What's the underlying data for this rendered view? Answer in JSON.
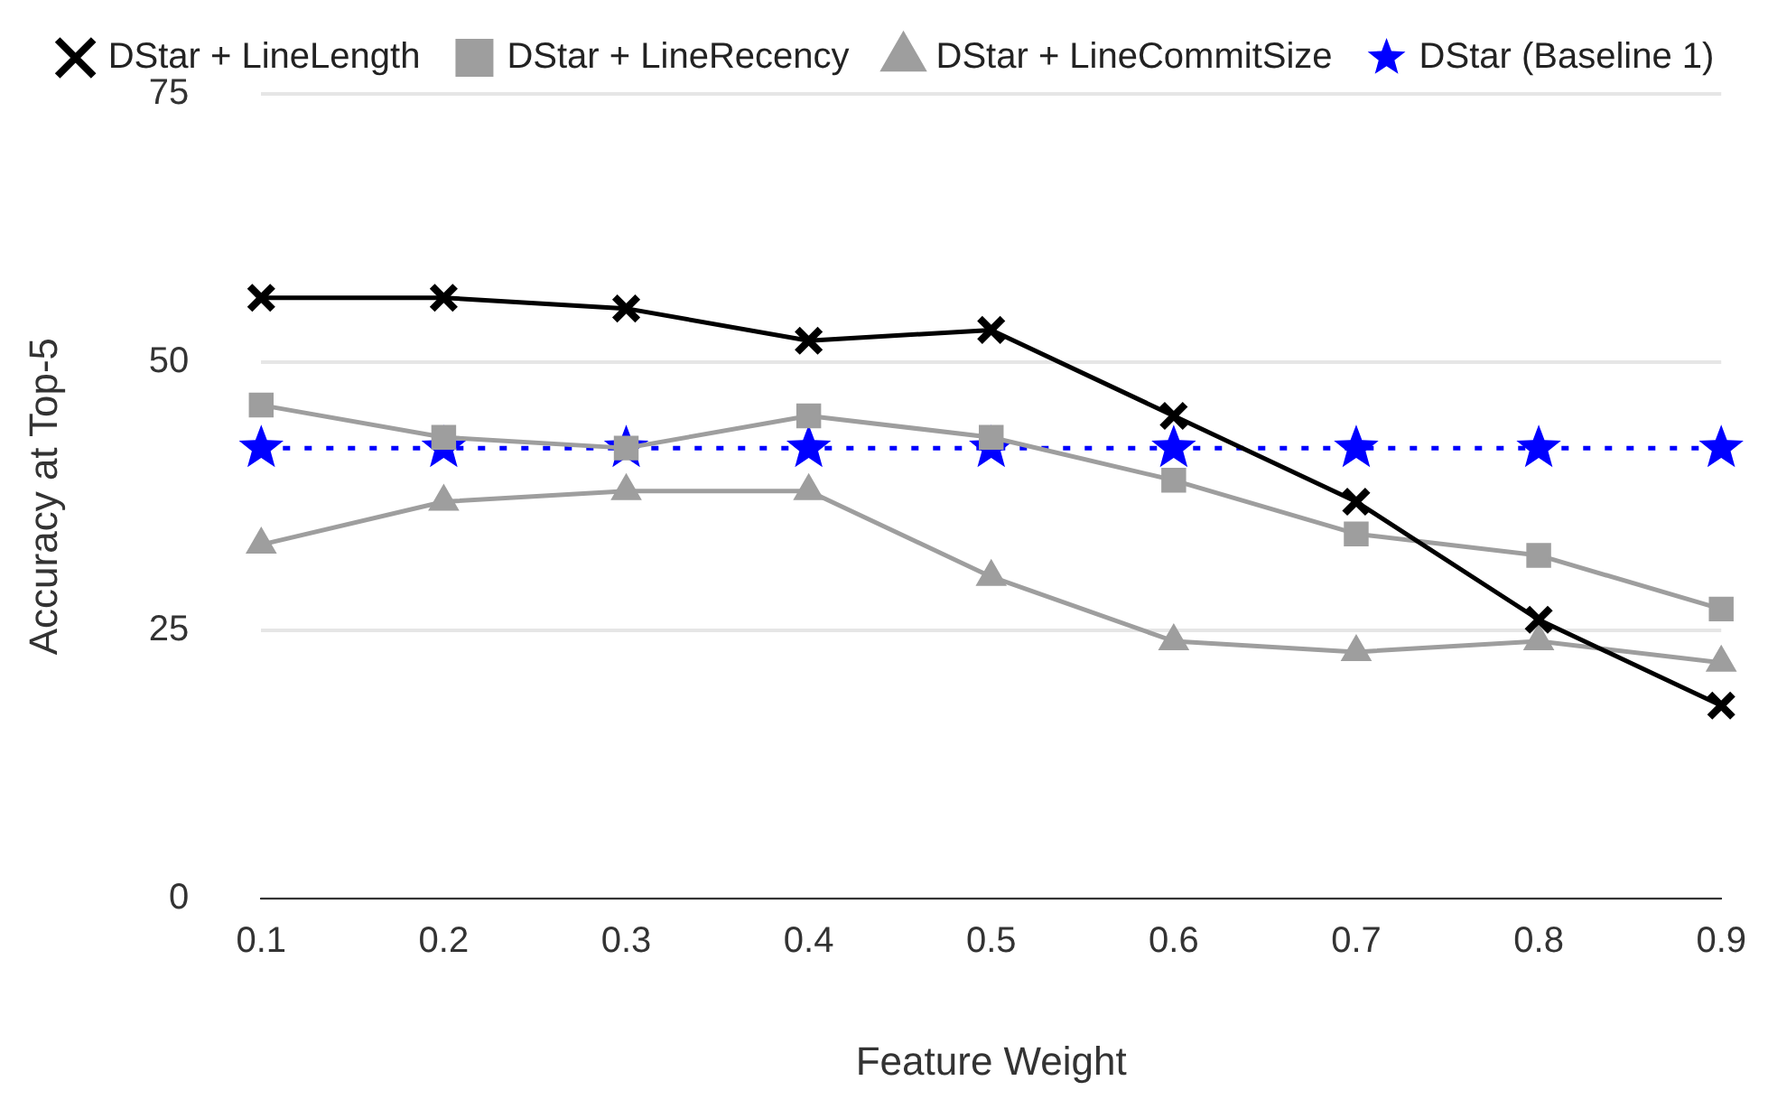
{
  "chart_data": {
    "type": "line",
    "xlabel": "Feature Weight",
    "ylabel": "Accuracy at Top-5",
    "categories": [
      "0.1",
      "0.2",
      "0.3",
      "0.4",
      "0.5",
      "0.6",
      "0.7",
      "0.8",
      "0.9"
    ],
    "series": [
      {
        "name": "DStar (Baseline 1)",
        "color": "#0000ff",
        "marker": "star",
        "line_style": "dotted",
        "values": [
          42,
          42,
          42,
          42,
          42,
          42,
          42,
          42,
          42
        ]
      },
      {
        "name": "DStar + LineLength",
        "color": "#000000",
        "marker": "cross",
        "line_style": "solid",
        "values": [
          56,
          56,
          55,
          52,
          53,
          45,
          37,
          26,
          18
        ]
      },
      {
        "name": "DStar + LineRecency",
        "color": "#9e9e9e",
        "marker": "square",
        "line_style": "solid",
        "values": [
          46,
          43,
          42,
          45,
          43,
          39,
          34,
          32,
          27
        ]
      },
      {
        "name": "DStar + LineCommitSize",
        "color": "#9e9e9e",
        "marker": "triangle",
        "line_style": "solid",
        "values": [
          33,
          37,
          38,
          38,
          30,
          24,
          23,
          24,
          22
        ]
      }
    ],
    "ylim": [
      0,
      75
    ],
    "yticks": [
      0,
      25,
      50,
      75
    ],
    "grid": "y",
    "legend": "top"
  }
}
